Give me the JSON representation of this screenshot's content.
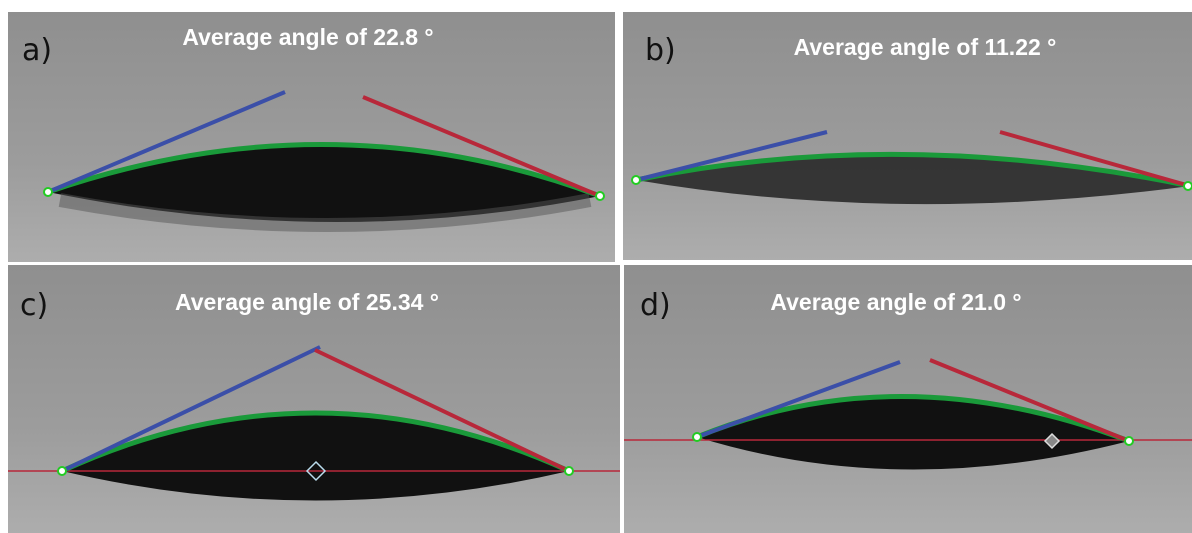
{
  "panels": [
    {
      "label": "a)",
      "caption": "Average angle of  22.8 °"
    },
    {
      "label": "b)",
      "caption": "Average angle of  11.22 °"
    },
    {
      "label": "c)",
      "caption": "Average angle of  25.34 °"
    },
    {
      "label": "d)",
      "caption": "Average angle of  21.0 °"
    }
  ]
}
